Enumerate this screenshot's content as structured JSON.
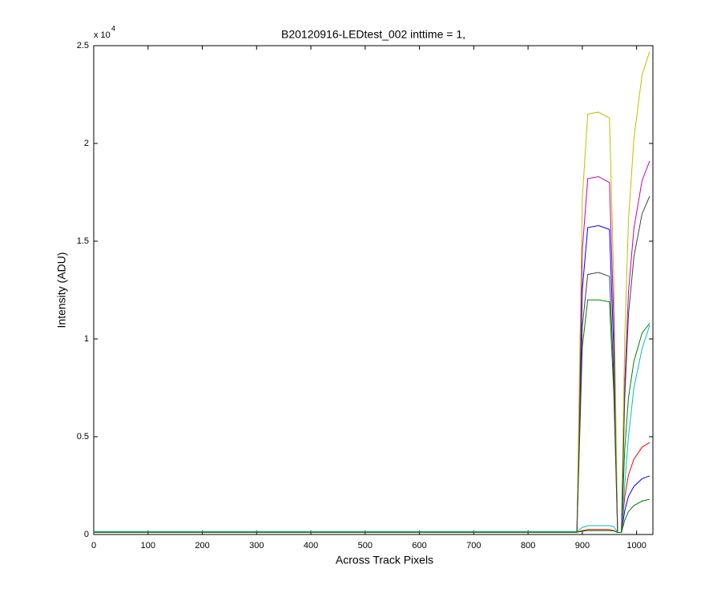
{
  "chart_data": {
    "type": "line",
    "title": "B20120916-LEDtest_002 inttime = 1,",
    "xlabel": "Across Track Pixels",
    "ylabel": "Intensity (ADU)",
    "y_multiplier": {
      "base": "x 10",
      "exponent": "4"
    },
    "x": [
      0,
      100,
      200,
      300,
      400,
      500,
      600,
      700,
      800,
      890,
      900,
      910,
      930,
      950,
      958,
      965,
      972,
      978,
      985,
      995,
      1010,
      1024
    ],
    "series": [
      {
        "color": "#0000ff",
        "values": [
          120,
          120,
          120,
          120,
          120,
          120,
          120,
          120,
          120,
          120,
          12560,
          15700,
          15800,
          15600,
          9400,
          100,
          100,
          1200,
          1950,
          2460,
          2850,
          3000
        ]
      },
      {
        "color": "#008000",
        "values": [
          120,
          120,
          120,
          120,
          120,
          120,
          120,
          120,
          120,
          120,
          9600,
          12000,
          12000,
          11900,
          7200,
          100,
          100,
          4300,
          7000,
          8860,
          10300,
          10800
        ]
      },
      {
        "color": "#ff0000",
        "values": [
          120,
          120,
          120,
          120,
          120,
          120,
          120,
          120,
          120,
          120,
          200,
          250,
          250,
          250,
          200,
          100,
          100,
          1900,
          3050,
          3850,
          4470,
          4700
        ]
      },
      {
        "color": "#00bfbf",
        "values": [
          150,
          150,
          150,
          150,
          150,
          150,
          150,
          150,
          150,
          150,
          360,
          450,
          450,
          450,
          400,
          100,
          100,
          2500,
          5000,
          7500,
          9500,
          10700
        ]
      },
      {
        "color": "#bf00bf",
        "values": [
          120,
          120,
          120,
          120,
          120,
          120,
          120,
          120,
          120,
          120,
          14560,
          18200,
          18300,
          18000,
          10900,
          100,
          100,
          7640,
          12400,
          15660,
          18100,
          19100
        ]
      },
      {
        "color": "#bfbf00",
        "values": [
          120,
          120,
          120,
          120,
          120,
          120,
          120,
          120,
          120,
          120,
          17200,
          21500,
          21600,
          21300,
          12900,
          100,
          100,
          9900,
          16060,
          20250,
          23500,
          24700
        ]
      },
      {
        "color": "#404040",
        "values": [
          120,
          120,
          120,
          120,
          120,
          120,
          120,
          120,
          120,
          120,
          10640,
          13300,
          13400,
          13200,
          8000,
          100,
          100,
          6900,
          11250,
          14200,
          16400,
          17300
        ]
      },
      {
        "color": "#008000",
        "values": [
          120,
          120,
          120,
          120,
          120,
          120,
          120,
          120,
          120,
          120,
          160,
          200,
          200,
          200,
          180,
          100,
          100,
          720,
          1170,
          1480,
          1710,
          1800
        ]
      }
    ],
    "xlim": [
      0,
      1030
    ],
    "xticks": [
      0,
      100,
      200,
      300,
      400,
      500,
      600,
      700,
      800,
      900,
      1000
    ],
    "ylim": [
      0,
      25000
    ],
    "yticks": [
      {
        "value": 0,
        "label": "0"
      },
      {
        "value": 5000,
        "label": "0.5"
      },
      {
        "value": 10000,
        "label": "1"
      },
      {
        "value": 15000,
        "label": "1.5"
      },
      {
        "value": 20000,
        "label": "2"
      },
      {
        "value": 25000,
        "label": "2.5"
      }
    ],
    "grid": false
  }
}
